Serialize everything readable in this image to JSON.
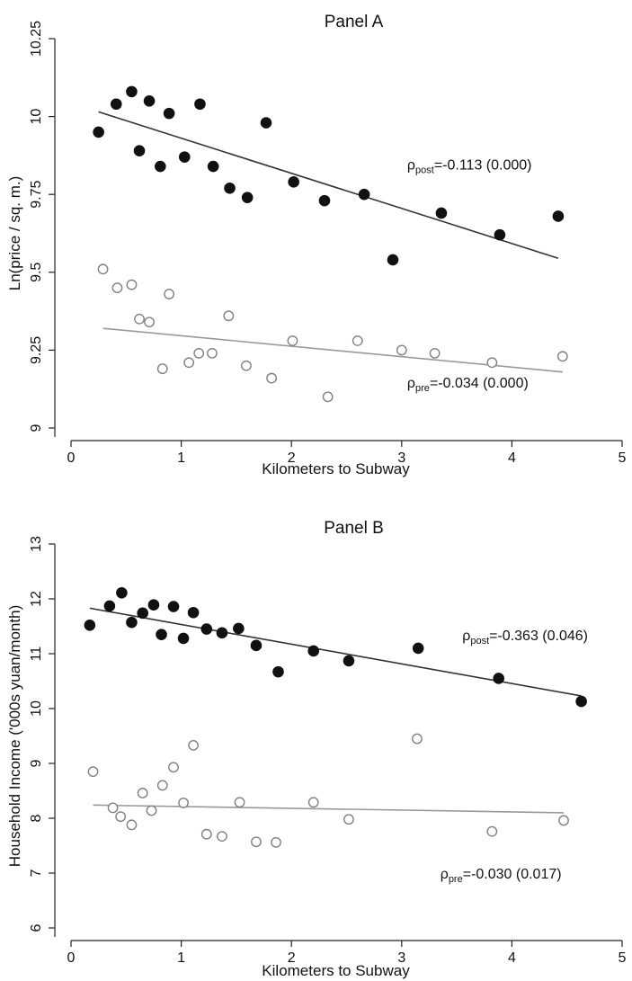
{
  "chart_data": [
    {
      "type": "scatter",
      "title": "Panel A",
      "xlabel": "Kilometers to Subway",
      "ylabel": "Ln(price / sq. m.)",
      "xlim": [
        0,
        5
      ],
      "ylim": [
        9,
        10.25
      ],
      "xticks": [
        "0",
        "1",
        "2",
        "3",
        "4",
        "5"
      ],
      "yticks": [
        "9",
        "9.25",
        "9.5",
        "9.75",
        "10",
        "10.25"
      ],
      "xtick_values": [
        0,
        1,
        2,
        3,
        4,
        5
      ],
      "ytick_values": [
        9,
        9.25,
        9.5,
        9.75,
        10,
        10.25
      ],
      "grid": false,
      "series": [
        {
          "key": "post",
          "marker": "filled",
          "color": "#111111",
          "x": [
            0.25,
            0.41,
            0.55,
            0.62,
            0.71,
            0.81,
            0.89,
            1.03,
            1.17,
            1.29,
            1.44,
            1.6,
            1.77,
            2.02,
            2.3,
            2.66,
            2.92,
            3.36,
            3.89,
            4.42
          ],
          "y": [
            9.95,
            10.04,
            10.08,
            9.89,
            10.05,
            9.84,
            10.01,
            9.87,
            10.04,
            9.84,
            9.77,
            9.74,
            9.98,
            9.79,
            9.73,
            9.75,
            9.54,
            9.69,
            9.62,
            9.68
          ],
          "fit": {
            "x": [
              0.25,
              4.42
            ],
            "y": [
              10.015,
              9.545
            ],
            "color": "#333333"
          }
        },
        {
          "key": "pre",
          "marker": "hollow",
          "color": "#808080",
          "x": [
            0.29,
            0.42,
            0.55,
            0.62,
            0.71,
            0.83,
            0.89,
            1.07,
            1.16,
            1.28,
            1.43,
            1.59,
            1.82,
            2.01,
            2.33,
            2.6,
            3.0,
            3.3,
            3.82,
            4.46
          ],
          "y": [
            9.51,
            9.45,
            9.46,
            9.35,
            9.34,
            9.19,
            9.43,
            9.21,
            9.24,
            9.24,
            9.36,
            9.2,
            9.16,
            9.28,
            9.1,
            9.28,
            9.25,
            9.24,
            9.21,
            9.23
          ],
          "fit": {
            "x": [
              0.29,
              4.46
            ],
            "y": [
              9.32,
              9.18
            ],
            "color": "#999999"
          }
        }
      ],
      "annotations": [
        {
          "pre": "ρ",
          "sub": "post",
          "post": "=-0.113 (0.000)",
          "x": 3.05,
          "y": 9.83
        },
        {
          "pre": "ρ",
          "sub": "pre",
          "post": "=-0.034 (0.000)",
          "x": 3.05,
          "y": 9.13
        }
      ]
    },
    {
      "type": "scatter",
      "title": "Panel B",
      "xlabel": "Kilometers to Subway",
      "ylabel": "Household Income ('000s yuan/month)",
      "xlim": [
        0,
        5
      ],
      "ylim": [
        6,
        13
      ],
      "xticks": [
        "0",
        "1",
        "2",
        "3",
        "4",
        "5"
      ],
      "yticks": [
        "6",
        "7",
        "8",
        "9",
        "10",
        "11",
        "12",
        "13"
      ],
      "xtick_values": [
        0,
        1,
        2,
        3,
        4,
        5
      ],
      "ytick_values": [
        6,
        7,
        8,
        9,
        10,
        11,
        12,
        13
      ],
      "grid": false,
      "series": [
        {
          "key": "post",
          "marker": "filled",
          "color": "#111111",
          "x": [
            0.17,
            0.35,
            0.46,
            0.55,
            0.65,
            0.75,
            0.82,
            0.93,
            1.02,
            1.11,
            1.23,
            1.37,
            1.52,
            1.68,
            1.88,
            2.2,
            2.52,
            3.15,
            3.88,
            4.63
          ],
          "y": [
            11.52,
            11.87,
            12.11,
            11.57,
            11.74,
            11.89,
            11.35,
            11.86,
            11.28,
            11.75,
            11.45,
            11.38,
            11.46,
            11.15,
            10.67,
            11.05,
            10.87,
            11.1,
            10.55,
            10.13
          ],
          "fit": {
            "x": [
              0.17,
              4.63
            ],
            "y": [
              11.83,
              10.23
            ],
            "color": "#333333"
          }
        },
        {
          "key": "pre",
          "marker": "hollow",
          "color": "#808080",
          "x": [
            0.2,
            0.38,
            0.45,
            0.55,
            0.65,
            0.73,
            0.83,
            0.93,
            1.02,
            1.11,
            1.23,
            1.37,
            1.53,
            1.68,
            1.86,
            2.2,
            2.52,
            3.14,
            3.82,
            4.47
          ],
          "y": [
            8.85,
            8.19,
            8.03,
            7.88,
            8.46,
            8.14,
            8.6,
            8.93,
            8.28,
            9.33,
            7.71,
            7.67,
            8.29,
            7.57,
            7.56,
            8.29,
            7.98,
            9.45,
            7.76,
            7.96
          ],
          "fit": {
            "x": [
              0.2,
              4.47
            ],
            "y": [
              8.24,
              8.1
            ],
            "color": "#999999"
          }
        }
      ],
      "annotations": [
        {
          "pre": "ρ",
          "sub": "post",
          "post": "=-0.363 (0.046)",
          "x": 3.55,
          "y": 11.25
        },
        {
          "pre": "ρ",
          "sub": "pre",
          "post": "=-0.030 (0.017)",
          "x": 3.35,
          "y": 6.9
        }
      ]
    }
  ]
}
